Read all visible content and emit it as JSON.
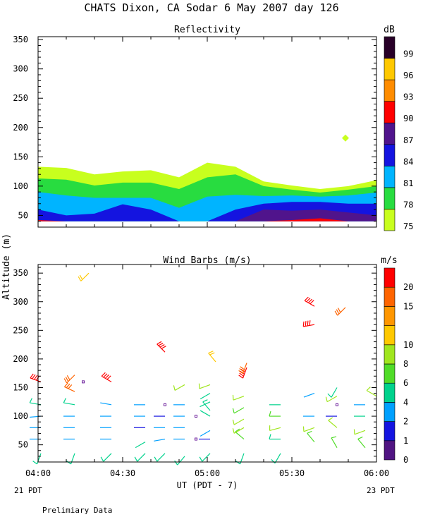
{
  "title": "CHATS Dixon, CA  Sodar   6 May 2007  day 126",
  "footer_note": "Prelimiary Data",
  "ylabel": "Altitude (m)",
  "xlabel": "UT  (PDT - 7)",
  "date_left": "21 PDT",
  "date_right": "23 PDT",
  "colors": {
    "dB": [
      "#c8ff1e",
      "#28dc40",
      "#00b4ff",
      "#1414e0",
      "#50148c",
      "#ff0000",
      "#ff8c00",
      "#ffc800",
      "#280028"
    ],
    "wind": [
      "#501482",
      "#1414e0",
      "#00a0ff",
      "#00d28c",
      "#50dc28",
      "#a0e61e",
      "#ffc800",
      "#ff9600",
      "#ff6400",
      "#ff0000"
    ]
  },
  "chart_data": [
    {
      "type": "heatmap",
      "title": "Reflectivity",
      "x_ticks": [
        "04:00",
        "04:30",
        "05:00",
        "05:30",
        "06:00"
      ],
      "x_range_min": [
        240,
        360
      ],
      "ylim": [
        30,
        355
      ],
      "y_ticks": [
        "50",
        "100",
        "150",
        "200",
        "250",
        "300",
        "350"
      ],
      "colorbar": {
        "label": "dB",
        "levels": [
          "75",
          "78",
          "81",
          "84",
          "87",
          "90",
          "93",
          "96",
          "99"
        ]
      },
      "time_min": [
        240,
        250,
        260,
        270,
        280,
        290,
        300,
        310,
        320,
        330,
        340,
        350,
        360
      ],
      "contour_tops": {
        "75": [
          133,
          131,
          120,
          125,
          127,
          115,
          140,
          133,
          108,
          101,
          95,
          100,
          110
        ],
        "78": [
          113,
          111,
          101,
          106,
          106,
          95,
          115,
          120,
          100,
          94,
          89,
          94,
          100
        ],
        "81": [
          90,
          84,
          80,
          80,
          80,
          63,
          82,
          85,
          83,
          84,
          82,
          84,
          89
        ],
        "84": [
          60,
          50,
          53,
          69,
          60,
          40,
          40,
          60,
          70,
          73,
          73,
          70,
          70
        ],
        "87": [
          40,
          40,
          40,
          40,
          40,
          40,
          40,
          40,
          60,
          58,
          60,
          55,
          50
        ],
        "90": [
          42,
          40,
          40,
          40,
          40,
          40,
          40,
          40,
          40,
          42,
          45,
          40,
          40
        ]
      },
      "isolated_point": {
        "time_min": 349,
        "altitude": 182,
        "level": "75"
      }
    },
    {
      "type": "scatter",
      "title": "Wind Barbs (m/s)",
      "x_ticks": [
        "04:00",
        "04:30",
        "05:00",
        "05:30",
        "06:00"
      ],
      "x_range_min": [
        240,
        360
      ],
      "ylim": [
        20,
        365
      ],
      "y_ticks": [
        "50",
        "100",
        "150",
        "200",
        "250",
        "300",
        "350"
      ],
      "colorbar": {
        "label": "m/s",
        "levels": [
          "0",
          "1",
          "2",
          "4",
          "6",
          "8",
          "10",
          "15",
          "20"
        ],
        "boundaries": [
          0,
          1,
          2,
          4,
          6,
          8,
          10,
          13,
          15,
          20,
          24
        ]
      },
      "barbs": [
        {
          "t": 241,
          "alt": 35,
          "speed": 5,
          "dir": 200
        },
        {
          "t": 241,
          "alt": 60,
          "speed": 3,
          "dir": 270
        },
        {
          "t": 241,
          "alt": 80,
          "speed": 3,
          "dir": 270
        },
        {
          "t": 241,
          "alt": 100,
          "speed": 3,
          "dir": 265
        },
        {
          "t": 241,
          "alt": 120,
          "speed": 5,
          "dir": 280
        },
        {
          "t": 241,
          "alt": 160,
          "speed": 20,
          "dir": 290
        },
        {
          "t": 253,
          "alt": 35,
          "speed": 5,
          "dir": 200
        },
        {
          "t": 253,
          "alt": 60,
          "speed": 3,
          "dir": 270
        },
        {
          "t": 253,
          "alt": 80,
          "speed": 3,
          "dir": 270
        },
        {
          "t": 253,
          "alt": 100,
          "speed": 3,
          "dir": 270
        },
        {
          "t": 253,
          "alt": 120,
          "speed": 5,
          "dir": 280
        },
        {
          "t": 253,
          "alt": 143,
          "speed": 15,
          "dir": 295
        },
        {
          "t": 253,
          "alt": 172,
          "speed": 15,
          "dir": 225
        },
        {
          "t": 258,
          "alt": 350,
          "speed": 10,
          "dir": 225
        },
        {
          "t": 266,
          "alt": 35,
          "speed": 5,
          "dir": 225
        },
        {
          "t": 266,
          "alt": 60,
          "speed": 3,
          "dir": 270
        },
        {
          "t": 266,
          "alt": 80,
          "speed": 2,
          "dir": 270
        },
        {
          "t": 266,
          "alt": 100,
          "speed": 2,
          "dir": 270
        },
        {
          "t": 266,
          "alt": 120,
          "speed": 3,
          "dir": 280
        },
        {
          "t": 266,
          "alt": 160,
          "speed": 20,
          "dir": 300
        },
        {
          "t": 278,
          "alt": 35,
          "speed": 5,
          "dir": 225
        },
        {
          "t": 278,
          "alt": 55,
          "speed": 4,
          "dir": 240
        },
        {
          "t": 278,
          "alt": 80,
          "speed": 1,
          "dir": 270
        },
        {
          "t": 278,
          "alt": 100,
          "speed": 2,
          "dir": 270
        },
        {
          "t": 278,
          "alt": 120,
          "speed": 3,
          "dir": 270
        },
        {
          "t": 285,
          "alt": 35,
          "speed": 5,
          "dir": 225
        },
        {
          "t": 285,
          "alt": 60,
          "speed": 3,
          "dir": 260
        },
        {
          "t": 285,
          "alt": 80,
          "speed": 2,
          "dir": 270
        },
        {
          "t": 285,
          "alt": 100,
          "speed": 1,
          "dir": 270
        },
        {
          "t": 285,
          "alt": 212,
          "speed": 20,
          "dir": 315
        },
        {
          "t": 292,
          "alt": 30,
          "speed": 5,
          "dir": 220
        },
        {
          "t": 292,
          "alt": 60,
          "speed": 3,
          "dir": 270
        },
        {
          "t": 292,
          "alt": 80,
          "speed": 2,
          "dir": 270
        },
        {
          "t": 292,
          "alt": 100,
          "speed": 2,
          "dir": 270
        },
        {
          "t": 292,
          "alt": 120,
          "speed": 3,
          "dir": 270
        },
        {
          "t": 292,
          "alt": 155,
          "speed": 8,
          "dir": 240
        },
        {
          "t": 301,
          "alt": 35,
          "speed": 5,
          "dir": 225
        },
        {
          "t": 301,
          "alt": 60,
          "speed": 1,
          "dir": 270
        },
        {
          "t": 301,
          "alt": 75,
          "speed": 3,
          "dir": 240
        },
        {
          "t": 301,
          "alt": 100,
          "speed": 4,
          "dir": 300
        },
        {
          "t": 301,
          "alt": 110,
          "speed": 5,
          "dir": 320
        },
        {
          "t": 301,
          "alt": 125,
          "speed": 4,
          "dir": 245
        },
        {
          "t": 301,
          "alt": 140,
          "speed": 4,
          "dir": 240
        },
        {
          "t": 301,
          "alt": 155,
          "speed": 8,
          "dir": 250
        },
        {
          "t": 303,
          "alt": 195,
          "speed": 10,
          "dir": 320
        },
        {
          "t": 313,
          "alt": 35,
          "speed": 5,
          "dir": 200
        },
        {
          "t": 313,
          "alt": 60,
          "speed": 6,
          "dir": 310
        },
        {
          "t": 313,
          "alt": 80,
          "speed": 8,
          "dir": 240
        },
        {
          "t": 313,
          "alt": 95,
          "speed": 8,
          "dir": 240
        },
        {
          "t": 313,
          "alt": 115,
          "speed": 6,
          "dir": 240
        },
        {
          "t": 313,
          "alt": 135,
          "speed": 8,
          "dir": 250
        },
        {
          "t": 314,
          "alt": 185,
          "speed": 20,
          "dir": 200
        },
        {
          "t": 314,
          "alt": 193,
          "speed": 15,
          "dir": 200
        },
        {
          "t": 326,
          "alt": 35,
          "speed": 5,
          "dir": 210
        },
        {
          "t": 326,
          "alt": 60,
          "speed": 5,
          "dir": 270
        },
        {
          "t": 326,
          "alt": 80,
          "speed": 8,
          "dir": 255
        },
        {
          "t": 326,
          "alt": 100,
          "speed": 6,
          "dir": 270
        },
        {
          "t": 326,
          "alt": 120,
          "speed": 4,
          "dir": 270
        },
        {
          "t": 338,
          "alt": 55,
          "speed": 6,
          "dir": 320
        },
        {
          "t": 338,
          "alt": 80,
          "speed": 8,
          "dir": 250
        },
        {
          "t": 338,
          "alt": 100,
          "speed": 3,
          "dir": 270
        },
        {
          "t": 338,
          "alt": 140,
          "speed": 3,
          "dir": 250
        },
        {
          "t": 338,
          "alt": 260,
          "speed": 20,
          "dir": 260
        },
        {
          "t": 338,
          "alt": 292,
          "speed": 20,
          "dir": 300
        },
        {
          "t": 346,
          "alt": 45,
          "speed": 6,
          "dir": 330
        },
        {
          "t": 346,
          "alt": 80,
          "speed": 8,
          "dir": 310
        },
        {
          "t": 346,
          "alt": 100,
          "speed": 1,
          "dir": 270
        },
        {
          "t": 346,
          "alt": 135,
          "speed": 8,
          "dir": 240
        },
        {
          "t": 346,
          "alt": 150,
          "speed": 5,
          "dir": 210
        },
        {
          "t": 349,
          "alt": 290,
          "speed": 15,
          "dir": 225
        },
        {
          "t": 356,
          "alt": 45,
          "speed": 6,
          "dir": 320
        },
        {
          "t": 356,
          "alt": 75,
          "speed": 8,
          "dir": 250
        },
        {
          "t": 356,
          "alt": 100,
          "speed": 4,
          "dir": 270
        },
        {
          "t": 356,
          "alt": 120,
          "speed": 3,
          "dir": 270
        },
        {
          "t": 360,
          "alt": 135,
          "speed": 8,
          "dir": 300
        }
      ],
      "calm_points": [
        {
          "t": 256,
          "alt": 160
        },
        {
          "t": 285,
          "alt": 120
        },
        {
          "t": 296,
          "alt": 100
        },
        {
          "t": 296,
          "alt": 60
        },
        {
          "t": 346,
          "alt": 120
        }
      ]
    }
  ]
}
